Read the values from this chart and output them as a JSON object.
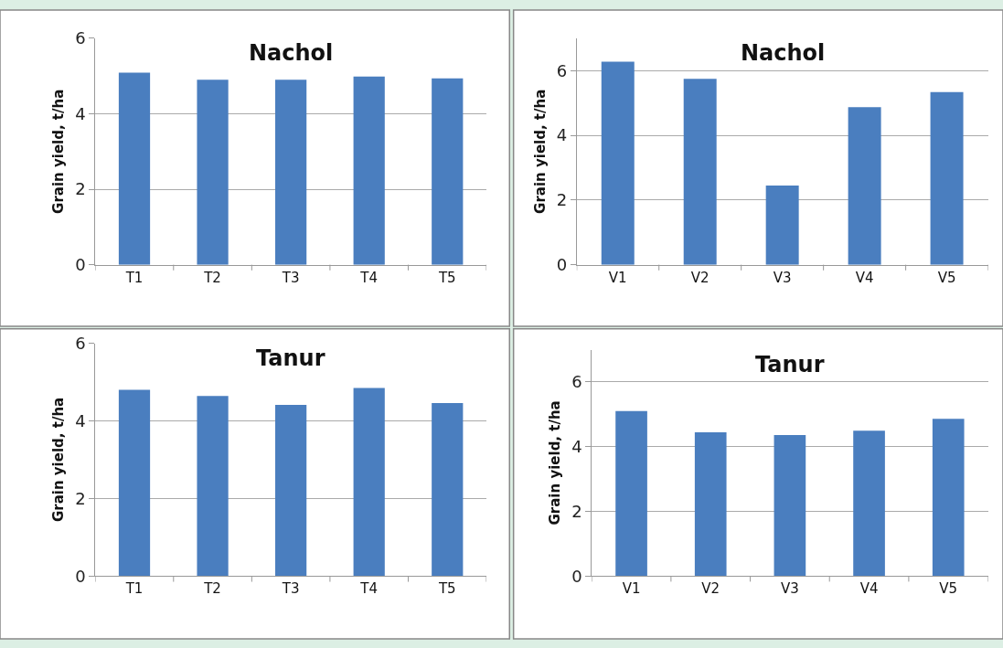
{
  "chart_data": [
    {
      "type": "bar",
      "title": "Nachol",
      "ylabel": "Grain yield, t/ha",
      "categories": [
        "T1",
        "T2",
        "T3",
        "T4",
        "T5"
      ],
      "values": [
        5.09,
        4.9,
        4.9,
        4.99,
        4.94
      ],
      "color": "#4a7ebf",
      "ylim": [
        0,
        6
      ],
      "yticks": [
        0,
        2,
        4,
        6
      ],
      "grid": "y"
    },
    {
      "type": "bar",
      "title": "Nachol",
      "ylabel": "Grain yield, t/ha",
      "categories": [
        "V1",
        "V2",
        "V3",
        "V4",
        "V5"
      ],
      "values": [
        6.28,
        5.75,
        2.45,
        4.87,
        5.34
      ],
      "color": "#4a7ebf",
      "ylim": [
        0,
        7
      ],
      "yticks": [
        0,
        2,
        4,
        6
      ],
      "grid": "y"
    },
    {
      "type": "bar",
      "title": "Tanur",
      "ylabel": "Grain yield, t/ha",
      "categories": [
        "T1",
        "T2",
        "T3",
        "T4",
        "T5"
      ],
      "values": [
        4.8,
        4.64,
        4.41,
        4.85,
        4.46
      ],
      "color": "#4a7ebf",
      "ylim": [
        0,
        6
      ],
      "yticks": [
        0,
        2,
        4,
        6
      ],
      "grid": "y"
    },
    {
      "type": "bar",
      "title": "Tanur",
      "ylabel": "Grain yield, t/ha",
      "categories": [
        "V1",
        "V2",
        "V3",
        "V4",
        "V5"
      ],
      "values": [
        5.1,
        4.44,
        4.36,
        4.49,
        4.86
      ],
      "color": "#4a7ebf",
      "ylim": [
        0,
        7
      ],
      "yticks": [
        0,
        2,
        4,
        6
      ],
      "grid": "y"
    }
  ]
}
